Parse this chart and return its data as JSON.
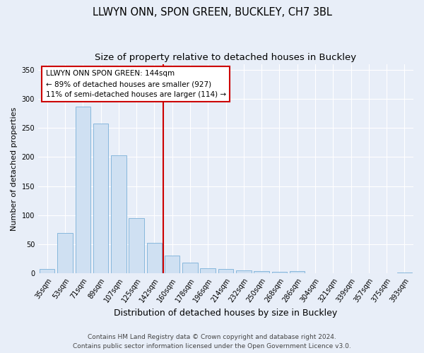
{
  "title1": "LLWYN ONN, SPON GREEN, BUCKLEY, CH7 3BL",
  "title2": "Size of property relative to detached houses in Buckley",
  "xlabel": "Distribution of detached houses by size in Buckley",
  "ylabel": "Number of detached properties",
  "categories": [
    "35sqm",
    "53sqm",
    "71sqm",
    "89sqm",
    "107sqm",
    "125sqm",
    "142sqm",
    "160sqm",
    "178sqm",
    "196sqm",
    "214sqm",
    "232sqm",
    "250sqm",
    "268sqm",
    "286sqm",
    "304sqm",
    "321sqm",
    "339sqm",
    "357sqm",
    "375sqm",
    "393sqm"
  ],
  "values": [
    8,
    70,
    287,
    258,
    203,
    95,
    52,
    30,
    19,
    9,
    8,
    5,
    4,
    3,
    4,
    0,
    0,
    0,
    0,
    0,
    2
  ],
  "bar_color": "#cfe0f2",
  "bar_edge_color": "#7ab0d8",
  "vline_color": "#cc0000",
  "ylim": [
    0,
    360
  ],
  "yticks": [
    0,
    50,
    100,
    150,
    200,
    250,
    300,
    350
  ],
  "annotation_line1": "LLWYN ONN SPON GREEN: 144sqm",
  "annotation_line2": "← 89% of detached houses are smaller (927)",
  "annotation_line3": "11% of semi-detached houses are larger (114) →",
  "annotation_box_color": "#cc0000",
  "footer1": "Contains HM Land Registry data © Crown copyright and database right 2024.",
  "footer2": "Contains public sector information licensed under the Open Government Licence v3.0.",
  "bg_color": "#e8eef8",
  "plot_bg_color": "#e8eef8",
  "title1_fontsize": 10.5,
  "title2_fontsize": 9.5,
  "xlabel_fontsize": 9,
  "ylabel_fontsize": 8,
  "tick_fontsize": 7,
  "footer_fontsize": 6.5,
  "annot_fontsize": 7.5,
  "vline_index": 6
}
